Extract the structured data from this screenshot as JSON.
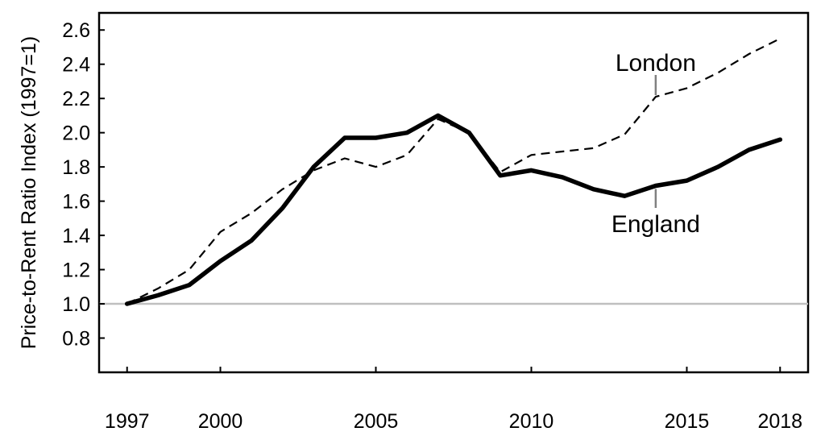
{
  "chart_data": {
    "type": "line",
    "title": "",
    "xlabel": "",
    "ylabel": "Price-to-Rent Ratio Index (1997=1)",
    "xlim": [
      1996.1,
      2018.9
    ],
    "ylim": [
      0.6,
      2.7
    ],
    "x_ticks": [
      1997,
      2000,
      2005,
      2010,
      2015,
      2018
    ],
    "y_ticks": [
      0.8,
      1.0,
      1.2,
      1.4,
      1.6,
      1.8,
      2.0,
      2.2,
      2.4,
      2.6
    ],
    "y_tick_labels": [
      "0.8",
      "1.0",
      "1.2",
      "1.4",
      "1.6",
      "1.8",
      "2.0",
      "2.2",
      "2.4",
      "2.6"
    ],
    "grid": false,
    "reference_line": {
      "y": 1.0,
      "color": "#bfbfbf"
    },
    "x": [
      1997,
      1998,
      1999,
      2000,
      2001,
      2002,
      2003,
      2004,
      2005,
      2006,
      2007,
      2008,
      2009,
      2010,
      2011,
      2012,
      2013,
      2014,
      2015,
      2016,
      2017,
      2018
    ],
    "series": [
      {
        "name": "London",
        "style": "dashed",
        "color": "#000000",
        "values": [
          1.0,
          1.09,
          1.2,
          1.42,
          1.53,
          1.67,
          1.78,
          1.85,
          1.8,
          1.87,
          2.08,
          2.0,
          1.77,
          1.87,
          1.89,
          1.91,
          1.99,
          2.21,
          2.26,
          2.35,
          2.46,
          2.55
        ]
      },
      {
        "name": "England",
        "style": "solid",
        "color": "#000000",
        "values": [
          1.0,
          1.05,
          1.11,
          1.25,
          1.37,
          1.56,
          1.8,
          1.97,
          1.97,
          2.0,
          2.1,
          2.0,
          1.75,
          1.78,
          1.74,
          1.67,
          1.63,
          1.69,
          1.72,
          1.8,
          1.9,
          1.96
        ]
      }
    ]
  }
}
